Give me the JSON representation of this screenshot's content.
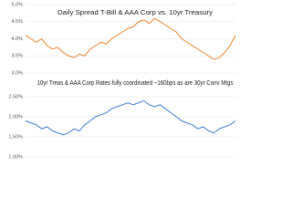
{
  "chart_data": [
    {
      "type": "line",
      "title": "Daily Spread T-Bill & AAA Corp vs. 10yr Treasury",
      "color": "#e8822a",
      "values": [
        4.1,
        4.0,
        3.9,
        4.0,
        3.8,
        3.7,
        3.75,
        3.6,
        3.5,
        3.45,
        3.55,
        3.5,
        3.7,
        3.8,
        3.9,
        3.85,
        4.0,
        4.1,
        4.2,
        4.3,
        4.35,
        4.5,
        4.55,
        4.45,
        4.6,
        4.5,
        4.4,
        4.3,
        4.2,
        4.0,
        3.9,
        3.8,
        3.7,
        3.6,
        3.5,
        3.4,
        3.45,
        3.6,
        3.8,
        4.1
      ],
      "ylim": [
        3,
        5
      ],
      "yticks": [
        {
          "value": 3,
          "label": "3.0%"
        },
        {
          "value": 3.5,
          "label": "3.5%"
        },
        {
          "value": 4,
          "label": "4.0%"
        },
        {
          "value": 4.5,
          "label": "4.5%"
        },
        {
          "value": 5,
          "label": "5.0%"
        }
      ],
      "grid": true
    },
    {
      "type": "line",
      "title": "10yr Treas & AAA Corp Rates fully coordinated ~160bps as are 30yr Conv Mtgs",
      "color": "#3d7cc9",
      "values": [
        1.9,
        1.85,
        1.8,
        1.7,
        1.75,
        1.65,
        1.6,
        1.55,
        1.6,
        1.7,
        1.65,
        1.8,
        1.9,
        2.0,
        2.05,
        2.1,
        2.2,
        2.25,
        2.3,
        2.35,
        2.3,
        2.35,
        2.4,
        2.3,
        2.25,
        2.3,
        2.2,
        2.1,
        2.0,
        1.9,
        1.85,
        1.8,
        1.7,
        1.75,
        1.65,
        1.6,
        1.7,
        1.75,
        1.8,
        1.9
      ],
      "ylim": [
        1,
        2.75
      ],
      "yticks": [
        {
          "value": 1,
          "label": "1.00%"
        },
        {
          "value": 1.5,
          "label": "1.50%"
        },
        {
          "value": 2,
          "label": "2.00%"
        },
        {
          "value": 2.5,
          "label": "2.50%"
        }
      ],
      "grid": true
    }
  ]
}
